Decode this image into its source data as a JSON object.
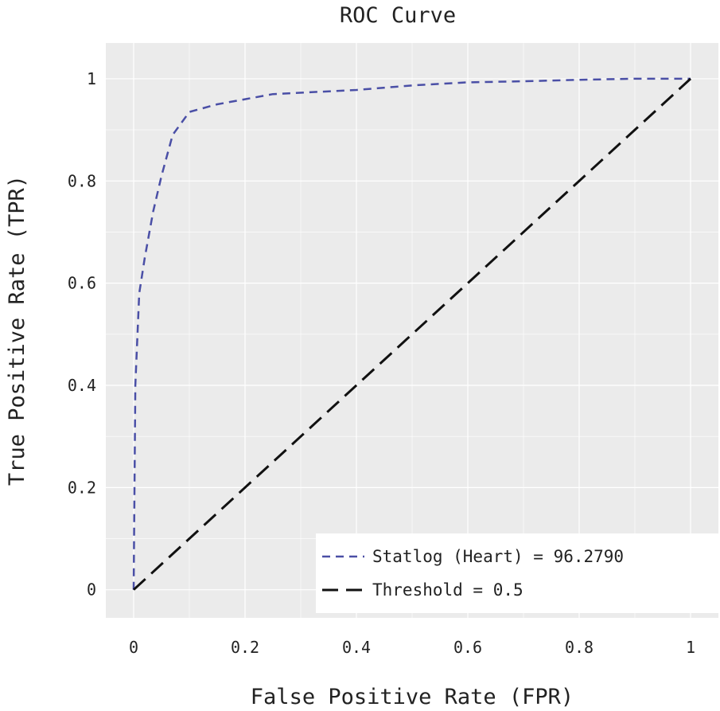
{
  "chart_data": {
    "type": "line",
    "title": "ROC Curve",
    "xlabel": "False Positive Rate (FPR)",
    "ylabel": "True Positive Rate (TPR)",
    "xlim": [
      -0.05,
      1.05
    ],
    "ylim": [
      -0.055,
      1.07
    ],
    "x_ticks": [
      0,
      0.2,
      0.4,
      0.6,
      0.8,
      1
    ],
    "x_tick_labels": [
      "0",
      "0.2",
      "0.4",
      "0.6",
      "0.8",
      "1"
    ],
    "y_ticks": [
      0,
      0.2,
      0.4,
      0.6,
      0.8,
      1
    ],
    "y_tick_labels": [
      "0",
      "0.2",
      "0.4",
      "0.6",
      "0.8",
      "1"
    ],
    "grid": true,
    "legend_position": "bottom-right",
    "series": [
      {
        "name": "Statlog (Heart) = 96.2790",
        "style": "dashed",
        "color": "#4a4fa6",
        "x": [
          0,
          0.003,
          0.01,
          0.02,
          0.035,
          0.05,
          0.07,
          0.1,
          0.15,
          0.2,
          0.25,
          0.4,
          0.5,
          0.6,
          0.7,
          0.8,
          0.9,
          1.0
        ],
        "y": [
          0,
          0.4,
          0.58,
          0.65,
          0.74,
          0.81,
          0.89,
          0.935,
          0.95,
          0.96,
          0.97,
          0.978,
          0.987,
          0.993,
          0.995,
          0.998,
          1.0,
          1.0
        ]
      },
      {
        "name": "Threshold = 0.5",
        "style": "dashed",
        "color": "#111111",
        "x": [
          0,
          1
        ],
        "y": [
          0,
          1
        ]
      }
    ]
  },
  "colors": {
    "panel_background": "#ebebeb",
    "grid": "#ffffff",
    "legend_background": "#ffffff"
  }
}
